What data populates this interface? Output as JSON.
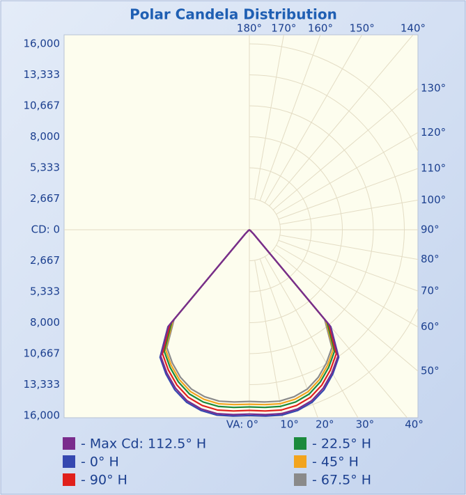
{
  "chart_data": {
    "type": "polar",
    "title": "Polar Candela Distribution",
    "rlim": [
      0,
      16000
    ],
    "rticks": [
      {
        "value": 0,
        "label": "CD: 0"
      },
      {
        "value": 2667,
        "label": "2,667"
      },
      {
        "value": 5333,
        "label": "5,333"
      },
      {
        "value": 8000,
        "label": "8,000"
      },
      {
        "value": 10667,
        "label": "10,667"
      },
      {
        "value": 13333,
        "label": "13,333"
      },
      {
        "value": 16000,
        "label": "16,000"
      }
    ],
    "angle_ticks": [
      {
        "value": 0,
        "label": "VA: 0°"
      },
      {
        "value": 10,
        "label": "10°"
      },
      {
        "value": 20,
        "label": "20°"
      },
      {
        "value": 30,
        "label": "30°"
      },
      {
        "value": 40,
        "label": "40°"
      },
      {
        "value": 50,
        "label": "50°"
      },
      {
        "value": 60,
        "label": "60°"
      },
      {
        "value": 70,
        "label": "70°"
      },
      {
        "value": 80,
        "label": "80°"
      },
      {
        "value": 90,
        "label": "90°"
      },
      {
        "value": 100,
        "label": "100°"
      },
      {
        "value": 110,
        "label": "110°"
      },
      {
        "value": 120,
        "label": "120°"
      },
      {
        "value": 130,
        "label": "130°"
      },
      {
        "value": 140,
        "label": "140°"
      },
      {
        "value": 150,
        "label": "150°"
      },
      {
        "value": 160,
        "label": "160°"
      },
      {
        "value": 170,
        "label": "170°"
      },
      {
        "value": 180,
        "label": "180°"
      }
    ],
    "x": [
      0,
      5,
      10,
      15,
      20,
      25,
      30,
      35,
      40,
      45,
      50,
      55,
      60,
      65,
      70,
      75,
      80,
      85,
      90
    ],
    "series": [
      {
        "name": "- Max Cd: 112.5° H",
        "color": "#7a2c8c",
        "values": [
          15860,
          15970,
          16070,
          15970,
          15660,
          15040,
          14210,
          13290,
          10820,
          520,
          100,
          0,
          0,
          0,
          0,
          0,
          0,
          0,
          0
        ]
      },
      {
        "name": "- 0° H",
        "color": "#3548b0",
        "values": [
          16000,
          16100,
          16200,
          16100,
          15800,
          15200,
          14350,
          13400,
          10900,
          520,
          100,
          0,
          0,
          0,
          0,
          0,
          0,
          0,
          0
        ]
      },
      {
        "name": "- 90° H",
        "color": "#e0201c",
        "values": [
          15550,
          15660,
          15760,
          15660,
          15350,
          14750,
          13940,
          13030,
          10610,
          510,
          100,
          0,
          0,
          0,
          0,
          0,
          0,
          0,
          0
        ]
      },
      {
        "name": "- 22.5° H",
        "color": "#1b8a3c",
        "values": [
          15250,
          15350,
          15440,
          15350,
          15050,
          14450,
          13660,
          12770,
          10400,
          500,
          100,
          0,
          0,
          0,
          0,
          0,
          0,
          0,
          0
        ]
      },
      {
        "name": "- 45° H",
        "color": "#f2a41e",
        "values": [
          15020,
          15110,
          15210,
          15110,
          14820,
          14240,
          13460,
          12580,
          10240,
          490,
          100,
          0,
          0,
          0,
          0,
          0,
          0,
          0,
          0
        ]
      },
      {
        "name": "- 67.5° H",
        "color": "#8a8a8a",
        "values": [
          14780,
          14880,
          14980,
          14880,
          14590,
          14020,
          13250,
          12380,
          10080,
          480,
          100,
          0,
          0,
          0,
          0,
          0,
          0,
          0,
          0
        ]
      }
    ]
  }
}
